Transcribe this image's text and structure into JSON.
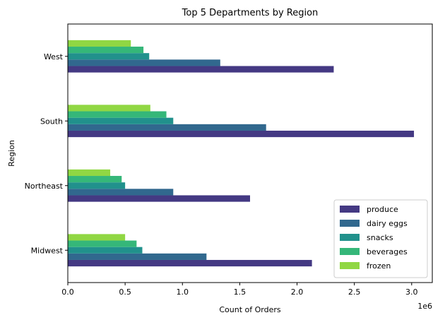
{
  "chart_data": {
    "type": "bar",
    "orientation": "horizontal",
    "title": "Top 5 Departments by Region",
    "xlabel": "Count of Orders",
    "ylabel": "Region",
    "x_multiplier_label": "1e6",
    "xlim": [
      0,
      3.18
    ],
    "x_ticks": [
      0.0,
      0.5,
      1.0,
      1.5,
      2.0,
      2.5,
      3.0
    ],
    "x_tick_labels": [
      "0.0",
      "0.5",
      "1.0",
      "1.5",
      "2.0",
      "2.5",
      "3.0"
    ],
    "categories": [
      "Midwest",
      "Northeast",
      "South",
      "West"
    ],
    "series": [
      {
        "name": "produce",
        "color": "#443983",
        "values": [
          2.13,
          1.59,
          3.02,
          2.32
        ]
      },
      {
        "name": "dairy eggs",
        "color": "#31688e",
        "values": [
          1.21,
          0.92,
          1.73,
          1.33
        ]
      },
      {
        "name": "snacks",
        "color": "#21918c",
        "values": [
          0.65,
          0.5,
          0.92,
          0.71
        ]
      },
      {
        "name": "beverages",
        "color": "#35b779",
        "values": [
          0.6,
          0.47,
          0.86,
          0.66
        ]
      },
      {
        "name": "frozen",
        "color": "#90d743",
        "values": [
          0.5,
          0.37,
          0.72,
          0.55
        ]
      }
    ],
    "legend_position": "lower-right",
    "grid": false
  }
}
